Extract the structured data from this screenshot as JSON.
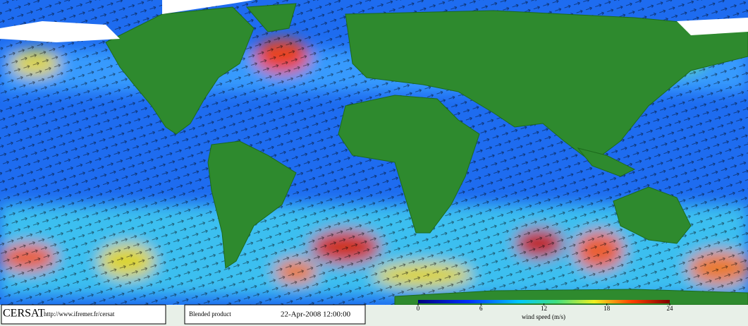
{
  "header": {
    "logo": "CERSAT",
    "url": "http://www.ifremer.fr/cersat",
    "product": "Blended product",
    "datetime": "22-Apr-2008 12:00:00"
  },
  "colorbar": {
    "range": [
      0,
      24
    ],
    "ticks": [
      0,
      6,
      12,
      18,
      24
    ],
    "label": "wind speed (m/s)"
  }
}
